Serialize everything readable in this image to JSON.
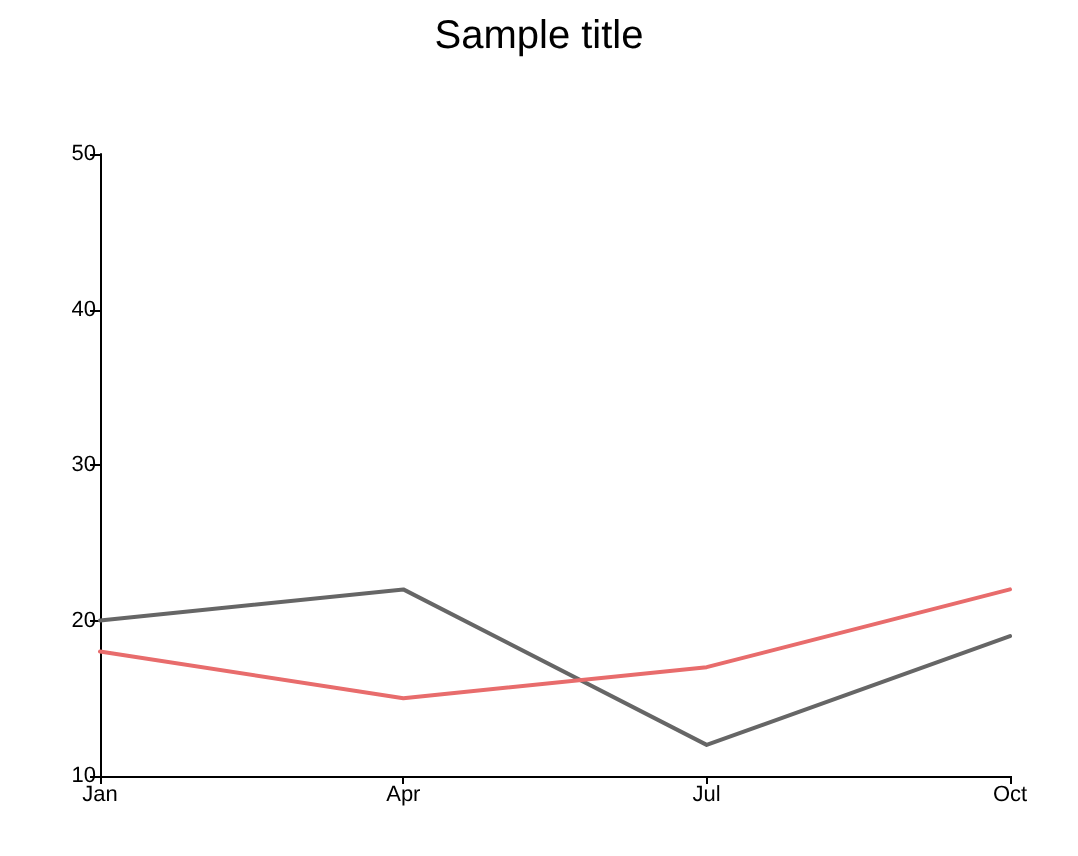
{
  "chart_data": {
    "type": "line",
    "title": "Sample title",
    "categories": [
      "Jan",
      "Apr",
      "Jul",
      "Oct"
    ],
    "series": [
      {
        "color": "#666666",
        "values": [
          20,
          22,
          12,
          19
        ]
      },
      {
        "color": "#e86c6c",
        "values": [
          18,
          15,
          17,
          22
        ]
      }
    ],
    "ylim": [
      10,
      50
    ],
    "yticks": [
      10,
      20,
      30,
      40,
      50
    ],
    "grid": false,
    "marker": "none",
    "line_style": "solid"
  }
}
